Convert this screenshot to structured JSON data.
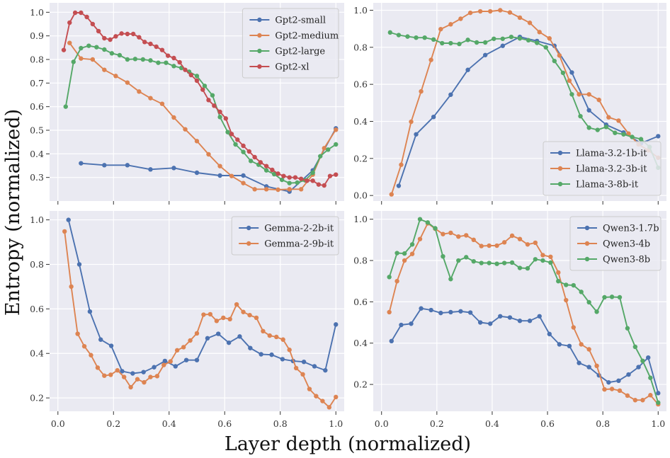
{
  "figure": {
    "xlabel": "Layer depth (normalized)",
    "ylabel": "Entropy (normalized)"
  },
  "chart_data": [
    {
      "type": "line",
      "panel": "top-left",
      "xlim": [
        -0.03,
        1.03
      ],
      "ylim": [
        0.2,
        1.04
      ],
      "xticks": [
        0.0,
        0.2,
        0.4,
        0.6,
        0.8,
        1.0
      ],
      "yticks": [
        0.3,
        0.4,
        0.5,
        0.6,
        0.7,
        0.8,
        0.9,
        1.0
      ],
      "yticklabels": [
        "0.3",
        "0.4",
        "0.5",
        "0.6",
        "0.7",
        "0.8",
        "0.9",
        "1.0"
      ],
      "xticklabels": [],
      "legend_position": "top-right",
      "series": [
        {
          "name": "Gpt2-small",
          "color": "#4c72b0",
          "x": [
            0.083,
            0.167,
            0.25,
            0.333,
            0.417,
            0.5,
            0.583,
            0.667,
            0.75,
            0.833,
            0.917,
            1.0
          ],
          "y": [
            0.36,
            0.352,
            0.352,
            0.334,
            0.34,
            0.32,
            0.308,
            0.308,
            0.262,
            0.24,
            0.33,
            0.508
          ]
        },
        {
          "name": "Gpt2-medium",
          "color": "#dd8452",
          "x": [
            0.042,
            0.083,
            0.125,
            0.167,
            0.208,
            0.25,
            0.292,
            0.333,
            0.375,
            0.417,
            0.458,
            0.5,
            0.542,
            0.583,
            0.625,
            0.667,
            0.708,
            0.75,
            0.792,
            0.833,
            0.875,
            0.917,
            0.958,
            1.0
          ],
          "y": [
            0.87,
            0.804,
            0.8,
            0.756,
            0.73,
            0.702,
            0.664,
            0.636,
            0.612,
            0.554,
            0.504,
            0.454,
            0.398,
            0.348,
            0.306,
            0.276,
            0.25,
            0.25,
            0.248,
            0.25,
            0.25,
            0.312,
            0.424,
            0.502
          ]
        },
        {
          "name": "Gpt2-large",
          "color": "#55a868",
          "x": [
            0.028,
            0.056,
            0.083,
            0.111,
            0.139,
            0.167,
            0.194,
            0.222,
            0.25,
            0.278,
            0.306,
            0.333,
            0.361,
            0.389,
            0.417,
            0.444,
            0.472,
            0.5,
            0.528,
            0.556,
            0.583,
            0.611,
            0.639,
            0.667,
            0.694,
            0.722,
            0.75,
            0.778,
            0.806,
            0.833,
            0.861,
            0.889,
            0.917,
            0.944,
            0.972,
            1.0
          ],
          "y": [
            0.6,
            0.79,
            0.848,
            0.858,
            0.852,
            0.842,
            0.826,
            0.818,
            0.8,
            0.802,
            0.8,
            0.796,
            0.786,
            0.786,
            0.772,
            0.764,
            0.748,
            0.73,
            0.688,
            0.648,
            0.556,
            0.492,
            0.44,
            0.408,
            0.37,
            0.354,
            0.33,
            0.314,
            0.29,
            0.276,
            0.278,
            0.288,
            0.32,
            0.39,
            0.418,
            0.44
          ]
        },
        {
          "name": "Gpt2-xl",
          "color": "#c44e52",
          "x": [
            0.021,
            0.042,
            0.062,
            0.083,
            0.104,
            0.125,
            0.146,
            0.167,
            0.188,
            0.208,
            0.229,
            0.25,
            0.271,
            0.292,
            0.312,
            0.333,
            0.354,
            0.375,
            0.396,
            0.417,
            0.438,
            0.458,
            0.479,
            0.5,
            0.521,
            0.542,
            0.562,
            0.583,
            0.604,
            0.625,
            0.646,
            0.667,
            0.688,
            0.708,
            0.729,
            0.75,
            0.771,
            0.792,
            0.812,
            0.833,
            0.854,
            0.875,
            0.896,
            0.917,
            0.938,
            0.958,
            0.979,
            1.0
          ],
          "y": [
            0.84,
            0.956,
            0.998,
            0.998,
            0.98,
            0.95,
            0.92,
            0.89,
            0.884,
            0.898,
            0.91,
            0.908,
            0.908,
            0.894,
            0.874,
            0.866,
            0.854,
            0.84,
            0.816,
            0.806,
            0.788,
            0.756,
            0.734,
            0.71,
            0.672,
            0.628,
            0.604,
            0.578,
            0.55,
            0.484,
            0.46,
            0.434,
            0.41,
            0.386,
            0.364,
            0.348,
            0.332,
            0.316,
            0.306,
            0.3,
            0.3,
            0.294,
            0.286,
            0.286,
            0.27,
            0.266,
            0.306,
            0.312
          ]
        }
      ]
    },
    {
      "type": "line",
      "panel": "top-right",
      "xlim": [
        -0.03,
        1.03
      ],
      "ylim": [
        -0.03,
        1.04
      ],
      "xticks": [
        0.0,
        0.2,
        0.4,
        0.6,
        0.8,
        1.0
      ],
      "yticks": [
        0.0,
        0.2,
        0.4,
        0.6,
        0.8,
        1.0
      ],
      "yticklabels": [
        "0.0",
        "0.2",
        "0.4",
        "0.6",
        "0.8",
        "1.0"
      ],
      "xticklabels": [],
      "legend_position": "bottom-right",
      "series": [
        {
          "name": "Llama-3.2-1b-it",
          "color": "#4c72b0",
          "x": [
            0.062,
            0.125,
            0.188,
            0.25,
            0.312,
            0.375,
            0.438,
            0.5,
            0.562,
            0.625,
            0.688,
            0.75,
            0.812,
            0.875,
            0.938,
            1.0
          ],
          "y": [
            0.052,
            0.33,
            0.424,
            0.544,
            0.678,
            0.758,
            0.808,
            0.856,
            0.834,
            0.808,
            0.664,
            0.46,
            0.382,
            0.34,
            0.282,
            0.32
          ]
        },
        {
          "name": "Llama-3.2-3b-it",
          "color": "#dd8452",
          "x": [
            0.036,
            0.071,
            0.107,
            0.143,
            0.179,
            0.214,
            0.25,
            0.286,
            0.321,
            0.357,
            0.393,
            0.429,
            0.464,
            0.5,
            0.536,
            0.571,
            0.607,
            0.643,
            0.679,
            0.714,
            0.75,
            0.786,
            0.821,
            0.857,
            0.893,
            0.929,
            0.964,
            1.0
          ],
          "y": [
            0.006,
            0.166,
            0.398,
            0.562,
            0.732,
            0.898,
            0.924,
            0.954,
            0.986,
            0.994,
            0.994,
            1.0,
            0.988,
            0.96,
            0.932,
            0.882,
            0.848,
            0.756,
            0.62,
            0.546,
            0.546,
            0.516,
            0.422,
            0.404,
            0.334,
            0.276,
            0.244,
            0.204
          ]
        },
        {
          "name": "Llama-3-8b-it",
          "color": "#55a868",
          "x": [
            0.031,
            0.062,
            0.094,
            0.125,
            0.156,
            0.188,
            0.219,
            0.25,
            0.281,
            0.312,
            0.344,
            0.375,
            0.406,
            0.438,
            0.469,
            0.5,
            0.531,
            0.562,
            0.594,
            0.625,
            0.656,
            0.688,
            0.719,
            0.75,
            0.781,
            0.812,
            0.844,
            0.875,
            0.906,
            0.938,
            0.969,
            1.0
          ],
          "y": [
            0.88,
            0.866,
            0.858,
            0.852,
            0.852,
            0.842,
            0.822,
            0.822,
            0.818,
            0.84,
            0.826,
            0.826,
            0.846,
            0.846,
            0.856,
            0.848,
            0.838,
            0.824,
            0.8,
            0.726,
            0.662,
            0.546,
            0.428,
            0.366,
            0.354,
            0.37,
            0.338,
            0.33,
            0.316,
            0.304,
            0.262,
            0.15
          ]
        }
      ]
    },
    {
      "type": "line",
      "panel": "bottom-left",
      "xlim": [
        -0.03,
        1.03
      ],
      "ylim": [
        0.14,
        1.04
      ],
      "xticks": [
        0.0,
        0.2,
        0.4,
        0.6,
        0.8,
        1.0
      ],
      "yticks": [
        0.2,
        0.4,
        0.6,
        0.8,
        1.0
      ],
      "yticklabels": [
        "0.2",
        "0.4",
        "0.6",
        "0.8",
        "1.0"
      ],
      "xticklabels": [
        "0.0",
        "0.2",
        "0.4",
        "0.6",
        "0.8",
        "1.0"
      ],
      "legend_position": "top-right",
      "series": [
        {
          "name": "Gemma-2-2b-it",
          "color": "#4c72b0",
          "x": [
            0.038,
            0.077,
            0.115,
            0.154,
            0.192,
            0.231,
            0.269,
            0.308,
            0.346,
            0.385,
            0.423,
            0.462,
            0.5,
            0.538,
            0.577,
            0.615,
            0.654,
            0.692,
            0.731,
            0.769,
            0.808,
            0.846,
            0.885,
            0.923,
            0.962,
            1.0
          ],
          "y": [
            1.0,
            0.8,
            0.588,
            0.462,
            0.434,
            0.32,
            0.31,
            0.316,
            0.338,
            0.366,
            0.342,
            0.37,
            0.37,
            0.468,
            0.488,
            0.448,
            0.476,
            0.424,
            0.396,
            0.394,
            0.374,
            0.366,
            0.362,
            0.342,
            0.324,
            0.53
          ]
        },
        {
          "name": "Gemma-2-9b-it",
          "color": "#dd8452",
          "x": [
            0.024,
            0.048,
            0.071,
            0.095,
            0.119,
            0.143,
            0.167,
            0.19,
            0.214,
            0.238,
            0.262,
            0.286,
            0.31,
            0.333,
            0.357,
            0.381,
            0.405,
            0.429,
            0.452,
            0.476,
            0.5,
            0.524,
            0.548,
            0.571,
            0.595,
            0.619,
            0.643,
            0.667,
            0.69,
            0.714,
            0.738,
            0.762,
            0.786,
            0.81,
            0.833,
            0.857,
            0.881,
            0.905,
            0.929,
            0.952,
            0.976,
            1.0
          ],
          "y": [
            0.948,
            0.7,
            0.488,
            0.432,
            0.392,
            0.336,
            0.3,
            0.304,
            0.324,
            0.294,
            0.248,
            0.284,
            0.27,
            0.294,
            0.298,
            0.348,
            0.364,
            0.414,
            0.428,
            0.458,
            0.49,
            0.574,
            0.576,
            0.546,
            0.56,
            0.554,
            0.62,
            0.586,
            0.572,
            0.56,
            0.5,
            0.48,
            0.474,
            0.462,
            0.416,
            0.334,
            0.306,
            0.24,
            0.208,
            0.186,
            0.158,
            0.204
          ]
        }
      ]
    },
    {
      "type": "line",
      "panel": "bottom-right",
      "xlim": [
        -0.03,
        1.03
      ],
      "ylim": [
        0.07,
        1.04
      ],
      "xticks": [
        0.0,
        0.2,
        0.4,
        0.6,
        0.8,
        1.0
      ],
      "yticks": [
        0.2,
        0.4,
        0.6,
        0.8,
        1.0
      ],
      "yticklabels": [
        "0.2",
        "0.4",
        "0.6",
        "0.8",
        "1.0"
      ],
      "xticklabels": [
        "0.0",
        "0.2",
        "0.4",
        "0.6",
        "0.8",
        "1.0"
      ],
      "legend_position": "top-right",
      "series": [
        {
          "name": "Qwen3-1.7b",
          "color": "#4c72b0",
          "x": [
            0.036,
            0.071,
            0.107,
            0.143,
            0.179,
            0.214,
            0.25,
            0.286,
            0.321,
            0.357,
            0.393,
            0.429,
            0.464,
            0.5,
            0.536,
            0.571,
            0.607,
            0.643,
            0.679,
            0.714,
            0.75,
            0.786,
            0.821,
            0.857,
            0.893,
            0.929,
            0.964,
            1.0
          ],
          "y": [
            0.41,
            0.488,
            0.494,
            0.568,
            0.56,
            0.546,
            0.55,
            0.554,
            0.548,
            0.5,
            0.494,
            0.53,
            0.524,
            0.508,
            0.508,
            0.53,
            0.444,
            0.394,
            0.386,
            0.304,
            0.284,
            0.244,
            0.21,
            0.218,
            0.248,
            0.284,
            0.33,
            0.158
          ]
        },
        {
          "name": "Qwen3-4b",
          "color": "#dd8452",
          "x": [
            0.028,
            0.056,
            0.083,
            0.111,
            0.139,
            0.167,
            0.194,
            0.222,
            0.25,
            0.278,
            0.306,
            0.333,
            0.361,
            0.389,
            0.417,
            0.444,
            0.472,
            0.5,
            0.528,
            0.556,
            0.583,
            0.611,
            0.639,
            0.667,
            0.694,
            0.722,
            0.75,
            0.778,
            0.806,
            0.833,
            0.861,
            0.889,
            0.917,
            0.944,
            0.972,
            1.0
          ],
          "y": [
            0.55,
            0.7,
            0.8,
            0.832,
            0.904,
            0.98,
            0.954,
            0.928,
            0.934,
            0.916,
            0.922,
            0.9,
            0.87,
            0.872,
            0.872,
            0.888,
            0.92,
            0.904,
            0.878,
            0.886,
            0.826,
            0.818,
            0.742,
            0.608,
            0.476,
            0.394,
            0.37,
            0.29,
            0.176,
            0.178,
            0.17,
            0.146,
            0.124,
            0.124,
            0.148,
            0.104
          ]
        },
        {
          "name": "Qwen3-8b",
          "color": "#55a868",
          "x": [
            0.028,
            0.056,
            0.083,
            0.111,
            0.139,
            0.167,
            0.194,
            0.222,
            0.25,
            0.278,
            0.306,
            0.333,
            0.361,
            0.389,
            0.417,
            0.444,
            0.472,
            0.5,
            0.528,
            0.556,
            0.583,
            0.611,
            0.639,
            0.667,
            0.694,
            0.722,
            0.75,
            0.778,
            0.806,
            0.833,
            0.861,
            0.889,
            0.917,
            0.944,
            0.972,
            1.0
          ],
          "y": [
            0.72,
            0.836,
            0.834,
            0.878,
            1.0,
            0.984,
            0.956,
            0.82,
            0.71,
            0.8,
            0.816,
            0.796,
            0.788,
            0.788,
            0.784,
            0.788,
            0.79,
            0.764,
            0.762,
            0.806,
            0.8,
            0.79,
            0.7,
            0.682,
            0.68,
            0.648,
            0.598,
            0.552,
            0.622,
            0.624,
            0.622,
            0.472,
            0.382,
            0.314,
            0.232,
            0.112
          ]
        }
      ]
    }
  ]
}
